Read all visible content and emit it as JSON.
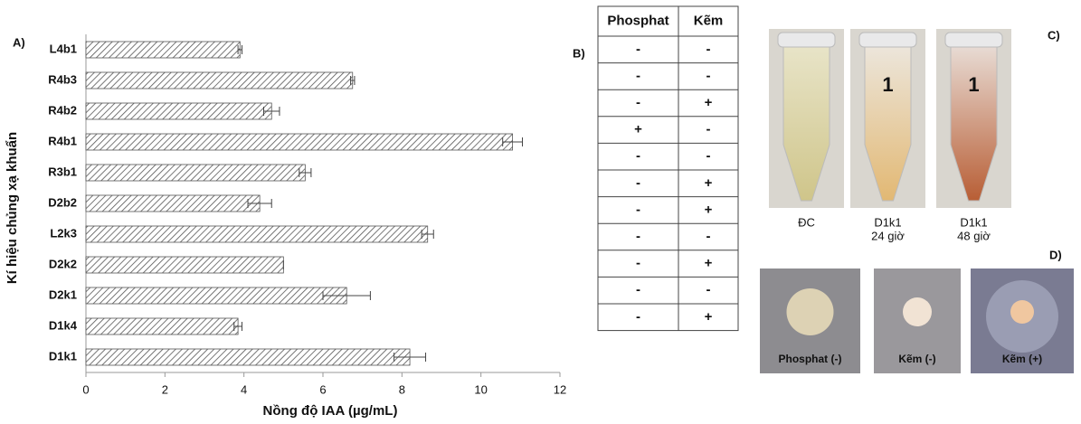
{
  "chart_data": {
    "type": "bar",
    "orientation": "horizontal",
    "panel_label": "A)",
    "xlabel": "Nồng độ IAA (µg/mL)",
    "ylabel": "Kí hiệu chủng xạ khuẩn",
    "categories": [
      "L4b1",
      "R4b3",
      "R4b2",
      "R4b1",
      "R3b1",
      "D2b2",
      "L2k3",
      "D2k2",
      "D2k1",
      "D1k4",
      "D1k1"
    ],
    "values": [
      3.9,
      6.75,
      4.7,
      10.8,
      5.55,
      4.4,
      8.65,
      5.0,
      6.6,
      3.85,
      8.2
    ],
    "errors": [
      0.05,
      0.05,
      0.2,
      0.25,
      0.15,
      0.3,
      0.15,
      0.0,
      0.6,
      0.1,
      0.4
    ],
    "color": "#555555",
    "xlim": [
      0,
      12
    ],
    "xticks": [
      0,
      2,
      4,
      6,
      8,
      10,
      12
    ]
  },
  "table": {
    "panel_label": "B)",
    "header": [
      "Phosphat",
      "Kẽm"
    ],
    "rows": [
      [
        "-",
        "-"
      ],
      [
        "-",
        "-"
      ],
      [
        "-",
        "+"
      ],
      [
        "+",
        "-"
      ],
      [
        "-",
        "-"
      ],
      [
        "-",
        "+"
      ],
      [
        "-",
        "+"
      ],
      [
        "-",
        "-"
      ],
      [
        "-",
        "+"
      ],
      [
        "-",
        "-"
      ],
      [
        "-",
        "+"
      ]
    ]
  },
  "tubes": {
    "panel_label": "C)",
    "items": [
      {
        "caption": [
          "ĐC"
        ]
      },
      {
        "number": "1",
        "caption": [
          "D1k1",
          "24 giờ"
        ]
      },
      {
        "number": "1",
        "caption": [
          "D1k1",
          "48 giờ"
        ]
      }
    ]
  },
  "plates": {
    "panel_label": "D)",
    "items": [
      {
        "caption": "Phosphat (-)"
      },
      {
        "caption": "Kẽm (-)"
      },
      {
        "caption": "Kẽm (+)"
      }
    ]
  }
}
